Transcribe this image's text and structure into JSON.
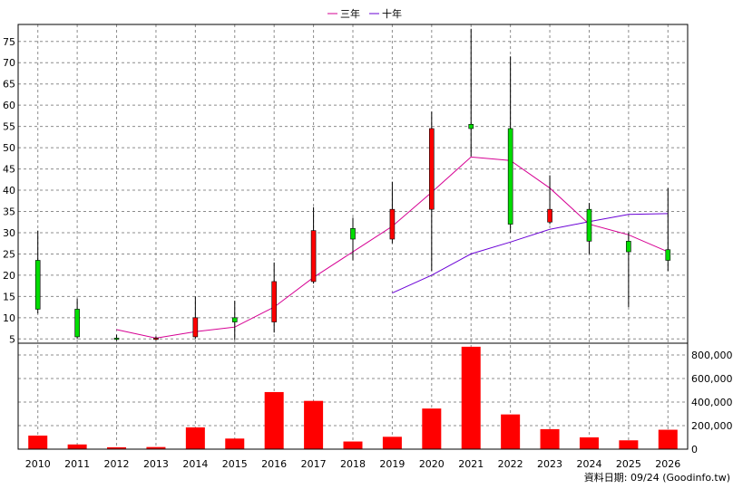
{
  "chart_data": [
    {
      "type": "candlestick",
      "title": "",
      "legend": {
        "position": "top-center",
        "entries": [
          {
            "name": "三年",
            "color": "#d60093"
          },
          {
            "name": "十年",
            "color": "#6a00d6"
          }
        ]
      },
      "x": [
        "2010",
        "2011",
        "2012",
        "2013",
        "2014",
        "2015",
        "2016",
        "2017",
        "2018",
        "2019",
        "2020",
        "2021",
        "2022",
        "2023",
        "2024",
        "2025",
        "2026"
      ],
      "ylim": [
        4,
        79
      ],
      "yticks": [
        5,
        10,
        15,
        20,
        25,
        30,
        35,
        40,
        45,
        50,
        55,
        60,
        65,
        70,
        75
      ],
      "grid": true,
      "up_color": "#ff0000",
      "down_color": "#00dd00",
      "ohlc": [
        {
          "x": "2010",
          "open": 23.5,
          "high": 30.5,
          "low": 11,
          "close": 12
        },
        {
          "x": "2011",
          "open": 12,
          "high": 14.5,
          "low": 5,
          "close": 5.5
        },
        {
          "x": "2012",
          "open": 5.2,
          "high": 6,
          "low": 4.6,
          "close": 5.1
        },
        {
          "x": "2013",
          "open": 5.1,
          "high": 5.6,
          "low": 4.7,
          "close": 5.2
        },
        {
          "x": "2014",
          "open": 5.5,
          "high": 15,
          "low": 5,
          "close": 10
        },
        {
          "x": "2015",
          "open": 10,
          "high": 14,
          "low": 4.8,
          "close": 9
        },
        {
          "x": "2016",
          "open": 9,
          "high": 23,
          "low": 6.5,
          "close": 18.5
        },
        {
          "x": "2017",
          "open": 18.5,
          "high": 36,
          "low": 18,
          "close": 30.5
        },
        {
          "x": "2018",
          "open": 31,
          "high": 33.5,
          "low": 23.5,
          "close": 28.5
        },
        {
          "x": "2019",
          "open": 28.5,
          "high": 42,
          "low": 27.5,
          "close": 35.5
        },
        {
          "x": "2020",
          "open": 35.5,
          "high": 58.5,
          "low": 21,
          "close": 54.5
        },
        {
          "x": "2021",
          "open": 55.5,
          "high": 78,
          "low": 48,
          "close": 54.5
        },
        {
          "x": "2022",
          "open": 54.5,
          "high": 71.5,
          "low": 30,
          "close": 32
        },
        {
          "x": "2023",
          "open": 32.5,
          "high": 43.5,
          "low": 32,
          "close": 35.5
        },
        {
          "x": "2024",
          "open": 35.5,
          "high": 37,
          "low": 25,
          "close": 28
        },
        {
          "x": "2025",
          "open": 28,
          "high": 30,
          "low": 12.5,
          "close": 25.5
        },
        {
          "x": "2026",
          "open": 26,
          "high": 40.5,
          "low": 21,
          "close": 23.5
        }
      ],
      "series": [
        {
          "name": "三年",
          "type": "line",
          "color": "#d60093",
          "values": [
            null,
            null,
            7.2,
            5.2,
            6.7,
            7.8,
            12.5,
            19.5,
            25.5,
            31.5,
            39.5,
            47.8,
            47,
            40.5,
            32,
            29.5,
            25.5
          ]
        },
        {
          "name": "十年",
          "type": "line",
          "color": "#6a00d6",
          "values": [
            null,
            null,
            null,
            null,
            null,
            null,
            null,
            null,
            null,
            15.8,
            20,
            25,
            27.8,
            30.8,
            32.6,
            34.3,
            34.5
          ]
        }
      ]
    },
    {
      "type": "bar",
      "x": [
        "2010",
        "2011",
        "2012",
        "2013",
        "2014",
        "2015",
        "2016",
        "2017",
        "2018",
        "2019",
        "2020",
        "2021",
        "2022",
        "2023",
        "2024",
        "2025",
        "2026"
      ],
      "values": [
        115000,
        40000,
        16000,
        18000,
        185000,
        90000,
        485000,
        410000,
        65000,
        105000,
        345000,
        870000,
        295000,
        170000,
        100000,
        75000,
        165000
      ],
      "ylim": [
        0,
        900000
      ],
      "yticks": [
        0,
        200000,
        400000,
        600000,
        800000
      ],
      "ytick_labels": [
        "0",
        "200,000",
        "400,000",
        "600,000",
        "800,000"
      ],
      "color": "#ff0000",
      "grid": true
    }
  ],
  "footer": {
    "source": "資料日期: 09/24  (Goodinfo.tw)"
  }
}
